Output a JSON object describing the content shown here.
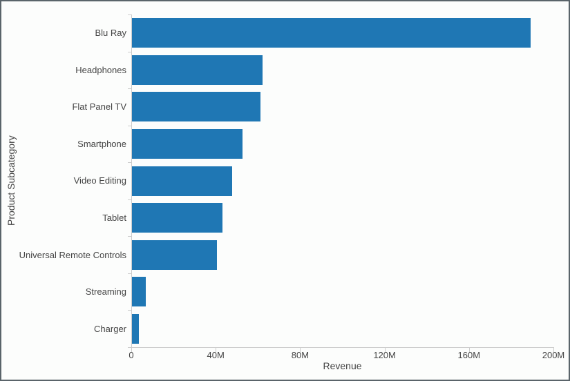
{
  "window": {
    "background_color": "#fcfdfc",
    "border_color": "#5a646a"
  },
  "chart_data": {
    "type": "bar",
    "orientation": "horizontal",
    "title": "",
    "xlabel": "Revenue",
    "ylabel": "Product Subcategory",
    "categories": [
      "Blu Ray",
      "Headphones",
      "Flat Panel TV",
      "Smartphone",
      "Video Editing",
      "Tablet",
      "Universal Remote Controls",
      "Streaming",
      "Charger"
    ],
    "values": [
      188.7,
      62.0,
      60.8,
      52.3,
      47.4,
      43.0,
      40.2,
      6.5,
      3.3
    ],
    "values_unit": "M",
    "xlim": [
      0,
      200
    ],
    "x_ticks": [
      {
        "value": 0,
        "label": "0"
      },
      {
        "value": 40,
        "label": "40M"
      },
      {
        "value": 80,
        "label": "80M"
      },
      {
        "value": 120,
        "label": "120M"
      },
      {
        "value": 160,
        "label": "160M"
      },
      {
        "value": 200,
        "label": "200M"
      }
    ],
    "grid": false,
    "legend": false,
    "bar_color": "#1f77b4",
    "axis_line_color": "#cccccc",
    "tick_color": "#cccccc",
    "text_color": "#444444"
  }
}
